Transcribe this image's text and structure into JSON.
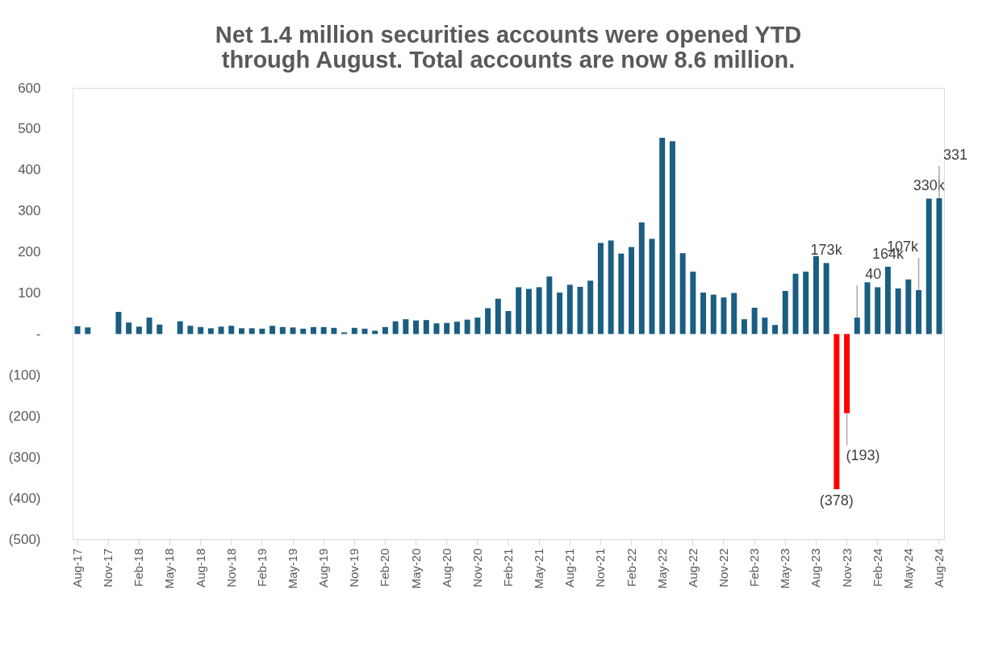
{
  "chart_data": {
    "type": "bar",
    "title": "Net  1.4 million securities accounts were opened YTD\nthrough August. Total accounts are now 8.6 million.",
    "categories": [
      "Aug-17",
      null,
      null,
      "Nov-17",
      null,
      null,
      "Feb-18",
      null,
      null,
      "May-18",
      null,
      null,
      "Aug-18",
      null,
      null,
      "Nov-18",
      null,
      null,
      "Feb-19",
      null,
      null,
      "May-19",
      null,
      null,
      "Aug-19",
      null,
      null,
      "Nov-19",
      null,
      null,
      "Feb-20",
      null,
      null,
      "May-20",
      null,
      null,
      "Aug-20",
      null,
      null,
      "Nov-20",
      null,
      null,
      "Feb-21",
      null,
      null,
      "May-21",
      null,
      null,
      "Aug-21",
      null,
      null,
      "Nov-21",
      null,
      null,
      "Feb-22",
      null,
      null,
      "May-22",
      null,
      null,
      "Aug-22",
      null,
      null,
      "Nov-22",
      null,
      null,
      "Feb-23",
      null,
      null,
      "May-23",
      null,
      null,
      "Aug-23",
      null,
      null,
      "Nov-23",
      null,
      null,
      "Feb-24",
      null,
      null,
      "May-24",
      null,
      null,
      "Aug-24"
    ],
    "values": [
      19,
      16,
      0,
      0,
      54,
      28,
      18,
      40,
      23,
      0,
      31,
      20,
      17,
      14,
      18,
      20,
      14,
      14,
      13,
      20,
      17,
      16,
      13,
      17,
      17,
      15,
      4,
      15,
      13,
      8,
      17,
      31,
      36,
      33,
      34,
      26,
      27,
      30,
      35,
      40,
      63,
      86,
      56,
      114,
      110,
      114,
      140,
      101,
      120,
      115,
      130,
      222,
      228,
      196,
      212,
      272,
      232,
      478,
      470,
      197,
      152,
      101,
      96,
      89,
      100,
      36,
      64,
      40,
      22,
      105,
      147,
      152,
      190,
      173,
      -378,
      -193,
      40,
      126,
      114,
      164,
      111,
      133,
      107,
      330,
      331
    ],
    "colors": [
      "#1a5e82",
      "#1a5e82",
      "#1a5e82",
      "#1a5e82",
      "#1a5e82",
      "#1a5e82",
      "#1a5e82",
      "#1a5e82",
      "#1a5e82",
      "#1a5e82",
      "#1a5e82",
      "#1a5e82",
      "#1a5e82",
      "#1a5e82",
      "#1a5e82",
      "#1a5e82",
      "#1a5e82",
      "#1a5e82",
      "#1a5e82",
      "#1a5e82",
      "#1a5e82",
      "#1a5e82",
      "#1a5e82",
      "#1a5e82",
      "#1a5e82",
      "#1a5e82",
      "#1a5e82",
      "#1a5e82",
      "#1a5e82",
      "#1a5e82",
      "#1a5e82",
      "#1a5e82",
      "#1a5e82",
      "#1a5e82",
      "#1a5e82",
      "#1a5e82",
      "#1a5e82",
      "#1a5e82",
      "#1a5e82",
      "#1a5e82",
      "#1a5e82",
      "#1a5e82",
      "#1a5e82",
      "#1a5e82",
      "#1a5e82",
      "#1a5e82",
      "#1a5e82",
      "#1a5e82",
      "#1a5e82",
      "#1a5e82",
      "#1a5e82",
      "#1a5e82",
      "#1a5e82",
      "#1a5e82",
      "#1a5e82",
      "#1a5e82",
      "#1a5e82",
      "#1a5e82",
      "#1a5e82",
      "#1a5e82",
      "#1a5e82",
      "#1a5e82",
      "#1a5e82",
      "#1a5e82",
      "#1a5e82",
      "#1a5e82",
      "#1a5e82",
      "#1a5e82",
      "#1a5e82",
      "#1a5e82",
      "#1a5e82",
      "#1a5e82",
      "#1a5e82",
      "#1a5e82",
      "#ff0000",
      "#ff0000",
      "#1a5e82",
      "#1a5e82",
      "#1a5e82",
      "#1a5e82",
      "#1a5e82",
      "#1a5e82",
      "#1a5e82",
      "#1a5e82",
      "#1a5e82"
    ],
    "value_labels": [
      null,
      null,
      null,
      null,
      null,
      null,
      null,
      null,
      null,
      null,
      null,
      null,
      null,
      null,
      null,
      null,
      null,
      null,
      null,
      null,
      null,
      null,
      null,
      null,
      null,
      null,
      null,
      null,
      null,
      null,
      null,
      null,
      null,
      null,
      null,
      null,
      null,
      null,
      null,
      null,
      null,
      null,
      null,
      null,
      null,
      null,
      null,
      null,
      null,
      null,
      null,
      null,
      null,
      null,
      null,
      null,
      null,
      null,
      null,
      null,
      null,
      null,
      null,
      null,
      null,
      null,
      null,
      null,
      null,
      null,
      null,
      null,
      null,
      "173k",
      "(378)",
      "(193)",
      "40",
      null,
      null,
      "164k",
      null,
      null,
      "107k",
      "330k",
      "331"
    ],
    "ylim": [
      -500,
      600
    ],
    "yticks": [
      600,
      500,
      400,
      300,
      200,
      100,
      {
        "value": 0,
        "label": "-"
      },
      {
        "value": -100,
        "label": "(100)"
      },
      {
        "value": -200,
        "label": "(200)"
      },
      {
        "value": -300,
        "label": "(300)"
      },
      {
        "value": -400,
        "label": "(400)"
      },
      {
        "value": -500,
        "label": "(500)"
      }
    ]
  }
}
